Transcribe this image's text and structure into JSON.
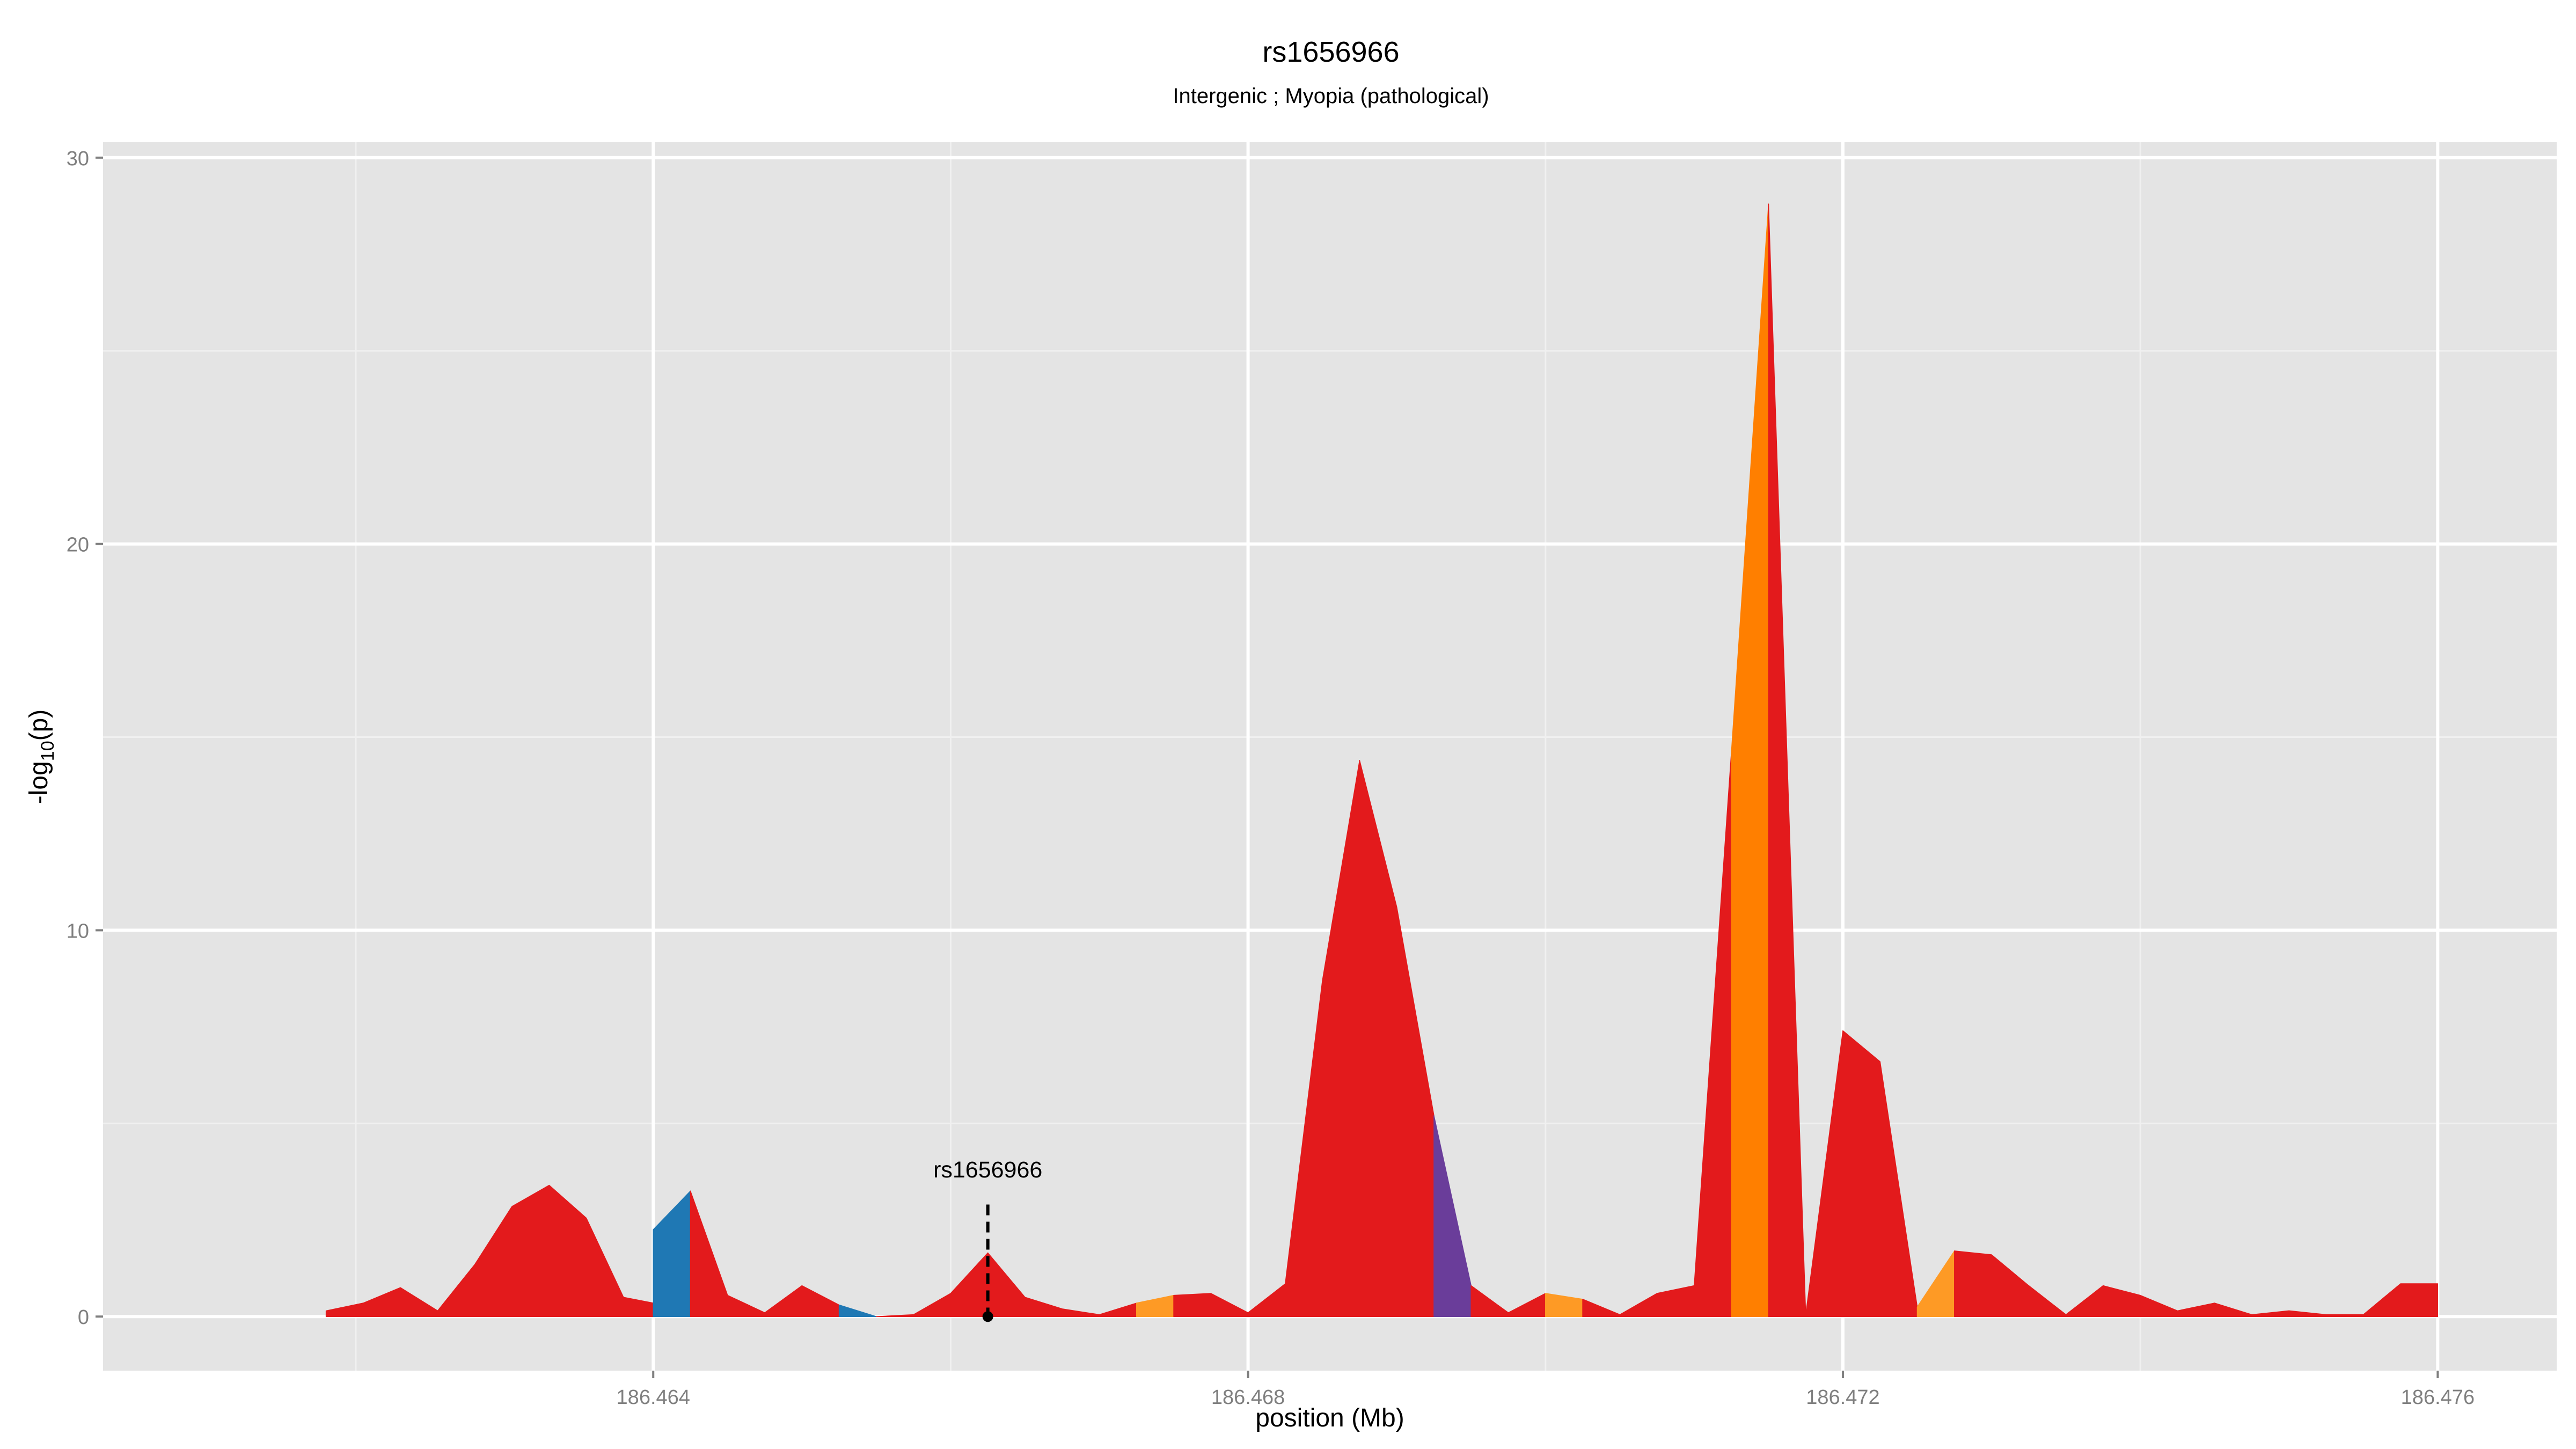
{
  "chart_data": {
    "type": "area",
    "title": "rs1656966",
    "subtitle": "Intergenic ; Myopia (pathological)",
    "xlabel": "position (Mb)",
    "ylabel": "-log10(p)",
    "ylabel_parts": {
      "pre": "-log",
      "sub": "10",
      "post": "(p)"
    },
    "xlim": [
      186.4603,
      186.4768
    ],
    "ylim": [
      -1.4,
      30.4
    ],
    "x_ticks": [
      186.464,
      186.468,
      186.472,
      186.476
    ],
    "x_tick_labels": [
      "186.464",
      "186.468",
      "186.472",
      "186.476"
    ],
    "y_ticks": [
      0,
      10,
      20,
      30
    ],
    "y_tick_labels": [
      "0",
      "10",
      "20",
      "30"
    ],
    "grid": true,
    "background": "#e4e4e4",
    "highlight": {
      "label": "rs1656966",
      "x": 186.46625,
      "y": 0,
      "label_y": 3.6,
      "line_top": 2.9
    },
    "colors": {
      "red": "#e31a1c",
      "blue": "#1f78b4",
      "purple": "#6a3d9a",
      "orange": "#ff7f00",
      "light_orange": "#fe9a25"
    },
    "x": [
      186.4618,
      186.462,
      186.4623,
      186.4625,
      186.4628,
      186.463,
      186.4633,
      186.4635,
      186.4638,
      186.464,
      186.4643,
      186.4645,
      186.4648,
      186.465,
      186.4653,
      186.4655,
      186.4658,
      186.466,
      186.4663,
      186.4665,
      186.4668,
      186.467,
      186.4673,
      186.4675,
      186.4678,
      186.468,
      186.4683,
      186.4685,
      186.4688,
      186.469,
      186.4693,
      186.4695,
      186.4698,
      186.47,
      186.4703,
      186.4705,
      186.4708,
      186.471,
      186.4713,
      186.4715,
      186.4718,
      186.472,
      186.4723,
      186.4725,
      186.4728,
      186.473,
      186.4733,
      186.4735,
      186.4738,
      186.474,
      186.4743,
      186.4745,
      186.4748,
      186.475,
      186.4753,
      186.4755,
      186.4758,
      186.476
    ],
    "y": [
      0.15,
      0.75,
      0.15,
      1.3,
      3.4,
      2.5,
      0.45,
      0.35,
      0.35,
      2.25,
      0.55,
      0.1,
      0.8,
      0.3,
      0.1,
      1.5,
      0.5,
      0.2,
      0.3,
      0.55,
      0.6,
      0.1,
      0.85,
      8.7,
      14.3,
      10.6,
      5.5,
      0.8,
      0.1,
      0.6,
      0.5,
      0.1,
      0.6,
      0.8,
      14.5,
      28.8,
      14.5,
      0.1,
      7.4,
      6.6,
      0.3,
      1.7,
      1.6,
      0.8,
      0.05,
      0.8,
      0.55,
      0.15,
      0.35,
      0.05,
      0.15,
      0.05,
      0.05,
      0.85,
      0.85,
      0.85,
      0.85,
      0.85
    ],
    "series": [
      {
        "name": "",
        "color": "#e31a1c",
        "x": [
          186.4618,
          186.46205,
          186.4623,
          186.46255,
          186.4628,
          186.46305,
          186.4633,
          186.46355,
          186.4638,
          186.464
        ],
        "y": [
          0.15,
          0.35,
          0.75,
          0.15,
          1.35,
          2.85,
          3.4,
          2.55,
          0.5,
          0.35
        ]
      },
      {
        "name": "",
        "color": "#1f78b4",
        "x": [
          186.464,
          186.46425
        ],
        "y": [
          2.25,
          3.25
        ]
      },
      {
        "name": "",
        "color": "#e31a1c",
        "x": [
          186.46425,
          186.4645,
          186.46475,
          186.465,
          186.46525
        ],
        "y": [
          3.25,
          0.55,
          0.1,
          0.8,
          0.3
        ]
      },
      {
        "name": "",
        "color": "#1f78b4",
        "x": [
          186.46525,
          186.4655
        ],
        "y": [
          0.3,
          0.0
        ]
      },
      {
        "name": "",
        "color": "#e31a1c",
        "x": [
          186.4655,
          186.46575,
          186.466,
          186.46625,
          186.4665,
          186.46675,
          186.467,
          186.46725
        ],
        "y": [
          0.0,
          0.05,
          0.6,
          1.65,
          0.5,
          0.2,
          0.05,
          0.35
        ]
      },
      {
        "name": "",
        "color": "#fe9a25",
        "x": [
          186.46725,
          186.4675
        ],
        "y": [
          0.35,
          0.55
        ]
      },
      {
        "name": "",
        "color": "#e31a1c",
        "x": [
          186.4675,
          186.46775,
          186.468,
          186.46825,
          186.4685,
          186.46875,
          186.469,
          186.46925
        ],
        "y": [
          0.55,
          0.6,
          0.1,
          0.85,
          8.7,
          14.4,
          10.6,
          5.2
        ]
      },
      {
        "name": "",
        "color": "#6a3d9a",
        "x": [
          186.46925,
          186.4695
        ],
        "y": [
          5.2,
          0.8
        ]
      },
      {
        "name": "",
        "color": "#e31a1c",
        "x": [
          186.4695,
          186.46975,
          186.47
        ],
        "y": [
          0.8,
          0.1,
          0.6
        ]
      },
      {
        "name": "",
        "color": "#fe9a25",
        "x": [
          186.47,
          186.47025
        ],
        "y": [
          0.6,
          0.45
        ]
      },
      {
        "name": "",
        "color": "#e31a1c",
        "x": [
          186.47025,
          186.4705,
          186.47075,
          186.471,
          186.47125
        ],
        "y": [
          0.45,
          0.05,
          0.6,
          0.8,
          14.6
        ]
      },
      {
        "name": "",
        "color": "#ff7f00",
        "x": [
          186.47125,
          186.4715
        ],
        "y": [
          14.6,
          28.8
        ]
      },
      {
        "name": "",
        "color": "#e31a1c",
        "x": [
          186.4715,
          186.47175,
          186.472,
          186.47225,
          186.4725
        ],
        "y": [
          28.8,
          0.05,
          7.4,
          6.6,
          0.25
        ]
      },
      {
        "name": "",
        "color": "#fe9a25",
        "x": [
          186.4725,
          186.47275
        ],
        "y": [
          0.25,
          1.7
        ]
      },
      {
        "name": "",
        "color": "#e31a1c",
        "x": [
          186.47275,
          186.473,
          186.47325,
          186.4735,
          186.47375,
          186.474,
          186.47425,
          186.4745,
          186.47475,
          186.475,
          186.47525,
          186.4755,
          186.47575,
          186.476
        ],
        "y": [
          1.7,
          1.6,
          0.8,
          0.05,
          0.8,
          0.55,
          0.15,
          0.35,
          0.05,
          0.15,
          0.05,
          0.05,
          0.85,
          0.85
        ]
      }
    ]
  }
}
